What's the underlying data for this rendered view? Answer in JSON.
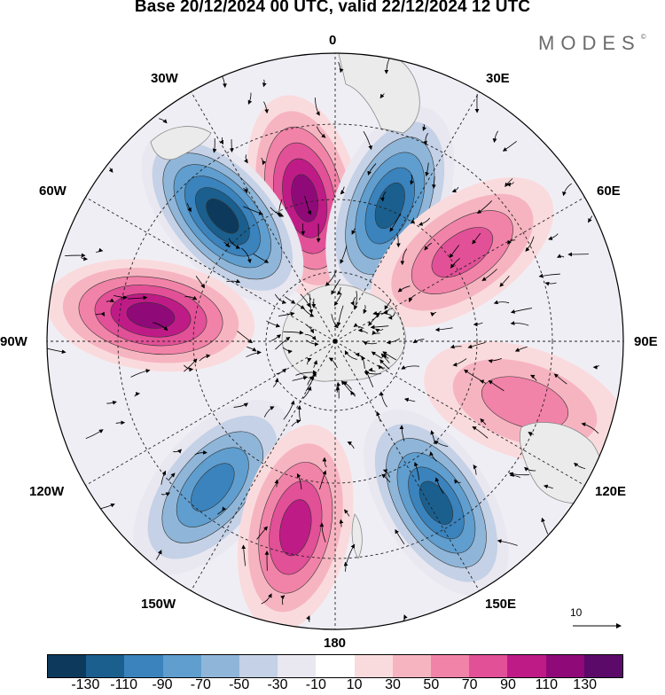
{
  "title": "Base 20/12/2024 00 UTC, valid 22/12/2024 12 UTC",
  "brand": "MODES",
  "brand_mark": "©",
  "longitude_labels": {
    "top": "0",
    "n30e": "30E",
    "n60e": "60E",
    "e90": "90E",
    "s120e": "120E",
    "s150e": "150E",
    "bottom": "180",
    "s150w": "150W",
    "s120w": "120W",
    "w90": "90W",
    "n60w": "60W",
    "n30w": "30W"
  },
  "reference_vector": {
    "label": "10",
    "icon": "arrow-right-icon"
  },
  "colorbar": {
    "colors": [
      "#0d3a5c",
      "#1a5f8e",
      "#3a83bd",
      "#5f9ecf",
      "#8fb6d9",
      "#c4d1e6",
      "#e9e7f0",
      "#ffffff",
      "#fadbdd",
      "#f6b4c1",
      "#f283a8",
      "#e25097",
      "#bf1b87",
      "#8f0a78",
      "#5b0a6a"
    ],
    "tick_labels": [
      "-130",
      "-110",
      "-90",
      "-70",
      "-50",
      "-30",
      "-10",
      "10",
      "30",
      "50",
      "70",
      "90",
      "110",
      "130"
    ]
  },
  "map": {
    "projection": "south polar stereographic",
    "field": "anomaly contours with wind vectors",
    "land_color": "#ebebeb",
    "anomaly_centers": [
      {
        "sign": "positive",
        "strength": 120,
        "sector": "10W-20W"
      },
      {
        "sign": "negative",
        "strength": 130,
        "sector": "40W"
      },
      {
        "sign": "negative",
        "strength": 110,
        "sector": "20E"
      },
      {
        "sign": "positive",
        "strength": 70,
        "sector": "55E"
      },
      {
        "sign": "positive",
        "strength": 110,
        "sector": "80W"
      },
      {
        "sign": "negative",
        "strength": 90,
        "sector": "130W"
      },
      {
        "sign": "positive",
        "strength": 100,
        "sector": "165W"
      },
      {
        "sign": "negative",
        "strength": 110,
        "sector": "150E"
      },
      {
        "sign": "positive",
        "strength": 60,
        "sector": "110E"
      }
    ]
  }
}
